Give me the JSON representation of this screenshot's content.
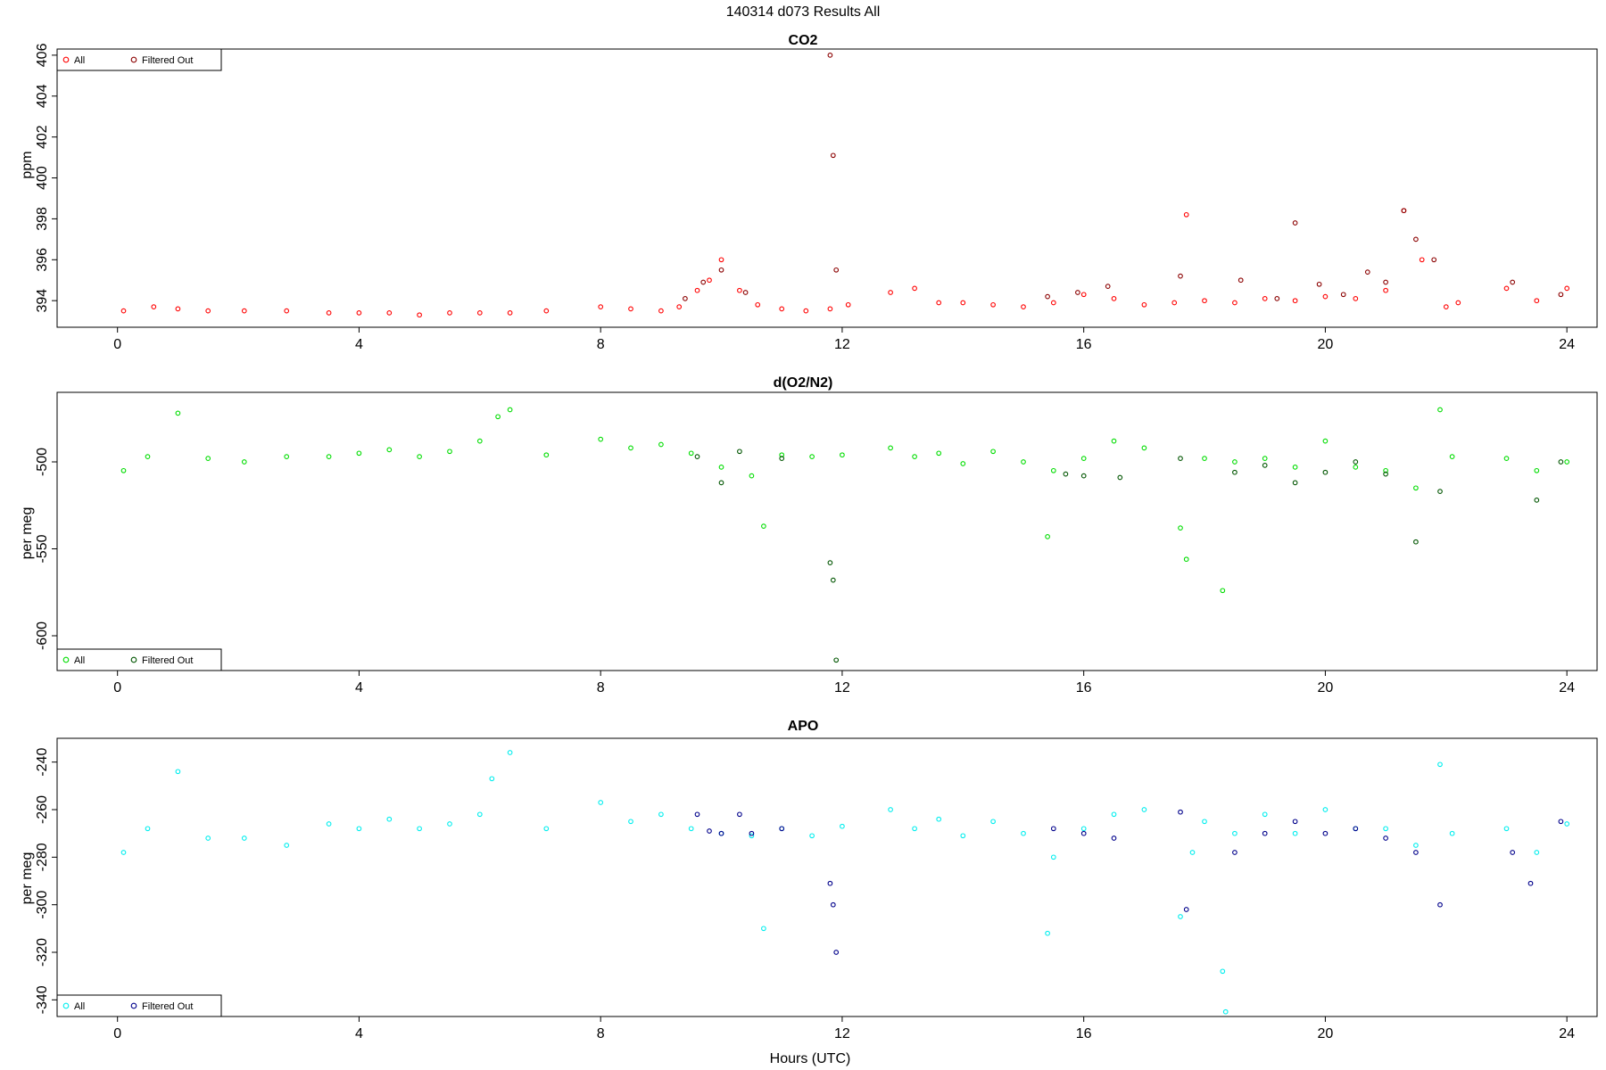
{
  "figure_title": "140314   d073   Results All",
  "x_axis_label": "Hours (UTC)",
  "chart_data": [
    {
      "type": "scatter",
      "title": "CO2",
      "ylabel": "ppm",
      "xlim": [
        -1,
        24.5
      ],
      "ylim": [
        392.7,
        406.3
      ],
      "x_ticks": [
        0,
        4,
        8,
        12,
        16,
        20,
        24
      ],
      "y_ticks": [
        394,
        396,
        398,
        400,
        402,
        404,
        406
      ],
      "legend": [
        "All",
        "Filtered Out"
      ],
      "legend_position": "top-left",
      "colors": {
        "all": "#ff0000",
        "filtered": "#8b0000"
      },
      "series": [
        {
          "name": "All",
          "x": [
            0.1,
            0.6,
            1.0,
            1.5,
            2.1,
            2.8,
            3.5,
            4.0,
            4.5,
            5.0,
            5.5,
            6.0,
            6.5,
            7.1,
            8.0,
            8.5,
            9.0,
            9.3,
            9.6,
            9.8,
            10.0,
            10.3,
            10.6,
            11.0,
            11.4,
            11.8,
            12.1,
            12.8,
            13.2,
            13.6,
            14.0,
            14.5,
            15.0,
            15.5,
            16.0,
            16.5,
            17.0,
            17.5,
            17.7,
            18.0,
            18.5,
            19.0,
            19.5,
            20.0,
            20.5,
            21.0,
            21.3,
            21.6,
            22.0,
            22.2,
            23.0,
            23.5,
            24.0
          ],
          "values": [
            393.5,
            393.7,
            393.6,
            393.5,
            393.5,
            393.5,
            393.4,
            393.4,
            393.4,
            393.3,
            393.4,
            393.4,
            393.4,
            393.5,
            393.7,
            393.6,
            393.5,
            393.7,
            394.5,
            395.0,
            396.0,
            394.5,
            393.8,
            393.6,
            393.5,
            393.6,
            393.8,
            394.4,
            394.6,
            393.9,
            393.9,
            393.8,
            393.7,
            393.9,
            394.3,
            394.1,
            393.8,
            393.9,
            398.2,
            394.0,
            393.9,
            394.1,
            394.0,
            394.2,
            394.1,
            394.5,
            398.4,
            396.0,
            393.7,
            393.9,
            394.6,
            394.0,
            394.6
          ]
        },
        {
          "name": "Filtered Out",
          "x": [
            9.4,
            9.7,
            10.0,
            10.4,
            11.8,
            11.85,
            11.9,
            15.4,
            15.9,
            16.4,
            17.6,
            18.6,
            19.2,
            19.5,
            19.9,
            20.3,
            20.7,
            21.0,
            21.3,
            21.5,
            21.8,
            23.1,
            23.9
          ],
          "values": [
            394.1,
            394.9,
            395.5,
            394.4,
            406.0,
            401.1,
            395.5,
            394.2,
            394.4,
            394.7,
            395.2,
            395.0,
            394.1,
            397.8,
            394.8,
            394.3,
            395.4,
            394.9,
            398.4,
            397.0,
            396.0,
            394.9,
            394.3
          ]
        }
      ]
    },
    {
      "type": "scatter",
      "title": "d(O2/N2)",
      "ylabel": "per meg",
      "xlim": [
        -1,
        24.5
      ],
      "ylim": [
        -620,
        -460
      ],
      "x_ticks": [
        0,
        4,
        8,
        12,
        16,
        20,
        24
      ],
      "y_ticks": [
        -500,
        -550,
        -600
      ],
      "legend": [
        "All",
        "Filtered Out"
      ],
      "legend_position": "bottom-left",
      "colors": {
        "all": "#00dd00",
        "filtered": "#005500"
      },
      "series": [
        {
          "name": "All",
          "x": [
            0.1,
            0.5,
            1.0,
            1.5,
            2.1,
            2.8,
            3.5,
            4.0,
            4.5,
            5.0,
            5.5,
            6.0,
            6.3,
            6.5,
            7.1,
            8.0,
            8.5,
            9.0,
            9.5,
            10.0,
            10.5,
            10.7,
            11.0,
            11.5,
            12.0,
            12.8,
            13.2,
            13.6,
            14.0,
            14.5,
            15.0,
            15.4,
            15.5,
            16.0,
            16.5,
            17.0,
            17.6,
            17.7,
            18.0,
            18.3,
            18.5,
            19.0,
            19.5,
            20.0,
            20.5,
            21.0,
            21.5,
            21.9,
            22.1,
            23.0,
            23.5,
            24.0
          ],
          "values": [
            -505,
            -497,
            -472,
            -498,
            -500,
            -497,
            -497,
            -495,
            -493,
            -497,
            -494,
            -488,
            -474,
            -470,
            -496,
            -487,
            -492,
            -490,
            -495,
            -503,
            -508,
            -537,
            -496,
            -497,
            -496,
            -492,
            -497,
            -495,
            -501,
            -494,
            -500,
            -543,
            -505,
            -498,
            -488,
            -492,
            -538,
            -556,
            -498,
            -574,
            -500,
            -498,
            -503,
            -488,
            -503,
            -505,
            -515,
            -470,
            -497,
            -498,
            -505,
            -500
          ]
        },
        {
          "name": "Filtered Out",
          "x": [
            9.6,
            10.0,
            10.3,
            11.0,
            11.8,
            11.85,
            11.9,
            15.7,
            16.0,
            16.6,
            17.6,
            18.5,
            19.0,
            19.5,
            20.0,
            20.5,
            21.0,
            21.5,
            21.9,
            23.5,
            23.9
          ],
          "values": [
            -497,
            -512,
            -494,
            -498,
            -558,
            -568,
            -614,
            -507,
            -508,
            -509,
            -498,
            -506,
            -502,
            -512,
            -506,
            -500,
            -507,
            -546,
            -517,
            -522,
            -500
          ]
        }
      ]
    },
    {
      "type": "scatter",
      "title": "APO",
      "ylabel": "per meg",
      "xlim": [
        -1,
        24.5
      ],
      "ylim": [
        -347,
        -230
      ],
      "x_ticks": [
        0,
        4,
        8,
        12,
        16,
        20,
        24
      ],
      "y_ticks": [
        -240,
        -260,
        -280,
        -300,
        -320,
        -340
      ],
      "legend": [
        "All",
        "Filtered Out"
      ],
      "legend_position": "bottom-left",
      "colors": {
        "all": "#00eeee",
        "filtered": "#00008b"
      },
      "series": [
        {
          "name": "All",
          "x": [
            0.1,
            0.5,
            1.0,
            1.5,
            2.1,
            2.8,
            3.5,
            4.0,
            4.5,
            5.0,
            5.5,
            6.0,
            6.2,
            6.5,
            7.1,
            8.0,
            8.5,
            9.0,
            9.5,
            10.0,
            10.5,
            10.7,
            11.0,
            11.5,
            12.0,
            12.8,
            13.2,
            13.6,
            14.0,
            14.5,
            15.0,
            15.4,
            15.5,
            16.0,
            16.5,
            17.0,
            17.6,
            17.8,
            18.0,
            18.3,
            18.35,
            18.5,
            19.0,
            19.5,
            20.0,
            20.5,
            21.0,
            21.5,
            21.9,
            22.1,
            23.0,
            23.5,
            24.0
          ],
          "values": [
            -278,
            -268,
            -244,
            -272,
            -272,
            -275,
            -266,
            -268,
            -264,
            -268,
            -266,
            -262,
            -247,
            -236,
            -268,
            -257,
            -265,
            -262,
            -268,
            -270,
            -271,
            -310,
            -268,
            -271,
            -267,
            -260,
            -268,
            -264,
            -271,
            -265,
            -270,
            -312,
            -280,
            -268,
            -262,
            -260,
            -305,
            -278,
            -265,
            -328,
            -345,
            -270,
            -262,
            -270,
            -260,
            -268,
            -268,
            -275,
            -241,
            -270,
            -268,
            -278,
            -266
          ]
        },
        {
          "name": "Filtered Out",
          "x": [
            9.6,
            9.8,
            10.0,
            10.3,
            10.5,
            11.0,
            11.8,
            11.85,
            11.9,
            15.5,
            16.0,
            16.5,
            17.6,
            17.7,
            18.5,
            19.0,
            19.5,
            20.0,
            20.5,
            21.0,
            21.5,
            21.9,
            23.1,
            23.4,
            23.9
          ],
          "values": [
            -262,
            -269,
            -270,
            -262,
            -270,
            -268,
            -291,
            -300,
            -320,
            -268,
            -270,
            -272,
            -261,
            -302,
            -278,
            -270,
            -265,
            -270,
            -268,
            -272,
            -278,
            -300,
            -278,
            -291,
            -265
          ]
        }
      ]
    }
  ]
}
